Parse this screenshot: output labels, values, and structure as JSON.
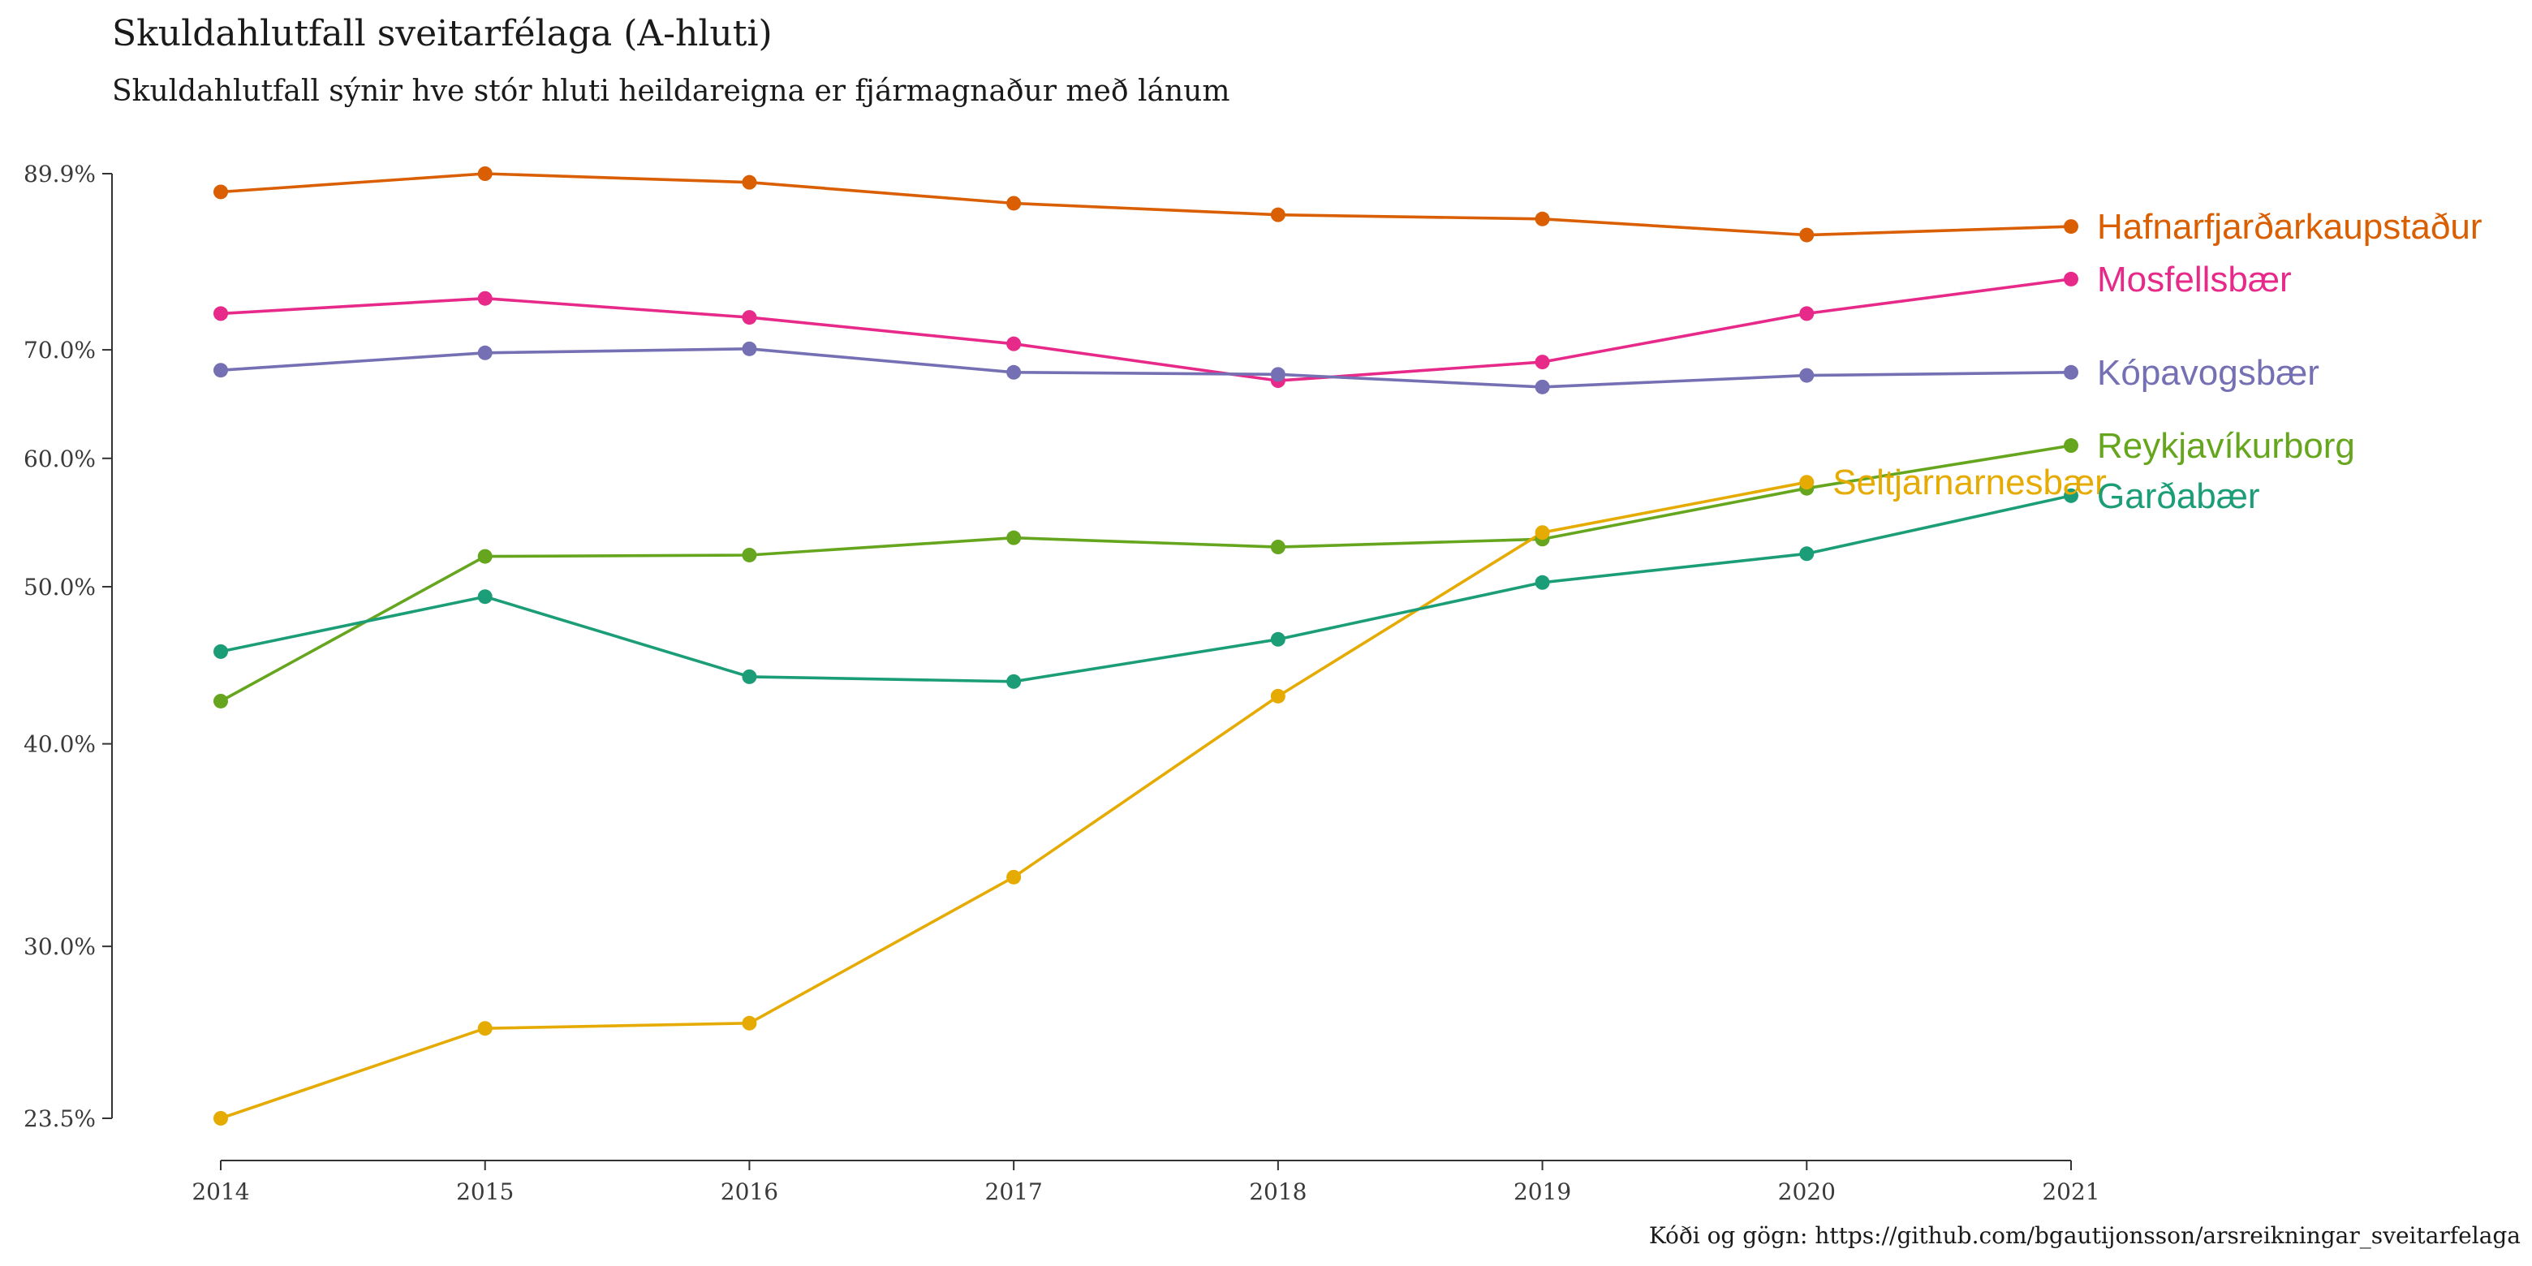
{
  "chart_data": {
    "type": "line",
    "title": "Skuldahlutfall sveitarfélaga (A-hluti)",
    "subtitle": "Skuldahlutfall sýnir hve stór hluti heildareigna er fjármagnaður með lánum",
    "caption": "Kóði og gögn: https://github.com/bgautijonsson/arsreikningar_sveitarfelaga",
    "xlabel": "",
    "ylabel": "",
    "x": [
      2014,
      2015,
      2016,
      2017,
      2018,
      2019,
      2020,
      2021
    ],
    "x_tick_labels": [
      "2014",
      "2015",
      "2016",
      "2017",
      "2018",
      "2019",
      "2020",
      "2021"
    ],
    "y_scale": "log",
    "ylim": [
      0.235,
      0.899
    ],
    "y_ticks": [
      0.235,
      0.3,
      0.4,
      0.5,
      0.6,
      0.7,
      0.899
    ],
    "y_tick_labels": [
      "23.5%",
      "30.0%",
      "40.0%",
      "50.0%",
      "60.0%",
      "70.0%",
      "89.9%"
    ],
    "grid": false,
    "legend": "direct labels at line ends",
    "series": [
      {
        "name": "Hafnarfjarðarkaupstaður",
        "color": "#d95f02",
        "values": [
          0.876,
          0.899,
          0.888,
          0.862,
          0.848,
          0.843,
          0.824,
          0.834
        ]
      },
      {
        "name": "Mosfellsbær",
        "color": "#e7298a",
        "values": [
          0.737,
          0.753,
          0.733,
          0.706,
          0.67,
          0.688,
          0.737,
          0.774
        ]
      },
      {
        "name": "Kópavogsbær",
        "color": "#7570b3",
        "values": [
          0.68,
          0.697,
          0.701,
          0.678,
          0.676,
          0.664,
          0.675,
          0.678
        ]
      },
      {
        "name": "Reykjavíkurborg",
        "color": "#66a61e",
        "values": [
          0.425,
          0.522,
          0.523,
          0.536,
          0.529,
          0.535,
          0.575,
          0.611
        ]
      },
      {
        "name": "Seltjarnarnesbær",
        "color": "#e6ab02",
        "values": [
          0.235,
          0.267,
          0.269,
          0.331,
          0.428,
          0.54,
          0.58,
          null
        ]
      },
      {
        "name": "Garðabær",
        "color": "#1b9e77",
        "values": [
          0.456,
          0.493,
          0.44,
          0.437,
          0.464,
          0.503,
          0.524,
          0.569
        ]
      }
    ]
  }
}
